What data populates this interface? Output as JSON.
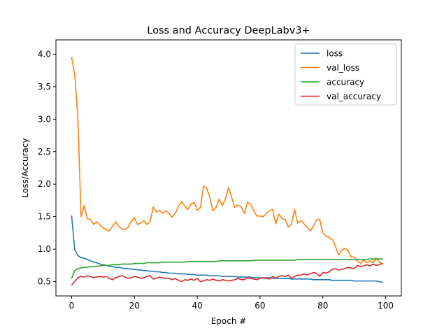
{
  "chart_data": {
    "type": "line",
    "title": "Loss and Accuracy DeepLabv3+",
    "xlabel": "Epoch #",
    "ylabel": "Loss/Accuracy",
    "xlim": [
      -5,
      105
    ],
    "ylim": [
      0.28,
      4.22
    ],
    "xticks": [
      0,
      20,
      40,
      60,
      80,
      100
    ],
    "yticks": [
      0.5,
      1.0,
      1.5,
      2.0,
      2.5,
      3.0,
      3.5,
      4.0
    ],
    "xtick_labels": [
      "0",
      "20",
      "40",
      "60",
      "80",
      "100"
    ],
    "ytick_labels": [
      "0.5",
      "1.0",
      "1.5",
      "2.0",
      "2.5",
      "3.0",
      "3.5",
      "4.0"
    ],
    "grid": false,
    "legend_position": "top-right",
    "x": [
      0,
      1,
      2,
      3,
      4,
      5,
      6,
      7,
      8,
      9,
      10,
      11,
      12,
      13,
      14,
      15,
      16,
      17,
      18,
      19,
      20,
      21,
      22,
      23,
      24,
      25,
      26,
      27,
      28,
      29,
      30,
      31,
      32,
      33,
      34,
      35,
      36,
      37,
      38,
      39,
      40,
      41,
      42,
      43,
      44,
      45,
      46,
      47,
      48,
      49,
      50,
      51,
      52,
      53,
      54,
      55,
      56,
      57,
      58,
      59,
      60,
      61,
      62,
      63,
      64,
      65,
      66,
      67,
      68,
      69,
      70,
      71,
      72,
      73,
      74,
      75,
      76,
      77,
      78,
      79,
      80,
      81,
      82,
      83,
      84,
      85,
      86,
      87,
      88,
      89,
      90,
      91,
      92,
      93,
      94,
      95,
      96,
      97,
      98,
      99
    ],
    "series": [
      {
        "name": "loss",
        "color": "#1f77b4",
        "values": [
          1.51,
          0.99,
          0.9,
          0.87,
          0.86,
          0.84,
          0.82,
          0.8,
          0.79,
          0.77,
          0.76,
          0.75,
          0.74,
          0.73,
          0.72,
          0.72,
          0.71,
          0.7,
          0.7,
          0.69,
          0.69,
          0.68,
          0.68,
          0.67,
          0.67,
          0.66,
          0.66,
          0.65,
          0.65,
          0.64,
          0.64,
          0.63,
          0.63,
          0.63,
          0.62,
          0.62,
          0.62,
          0.61,
          0.61,
          0.61,
          0.6,
          0.6,
          0.6,
          0.6,
          0.59,
          0.59,
          0.59,
          0.59,
          0.58,
          0.58,
          0.58,
          0.58,
          0.58,
          0.57,
          0.57,
          0.57,
          0.57,
          0.57,
          0.56,
          0.56,
          0.56,
          0.56,
          0.56,
          0.56,
          0.55,
          0.55,
          0.55,
          0.55,
          0.55,
          0.55,
          0.54,
          0.54,
          0.54,
          0.54,
          0.54,
          0.54,
          0.54,
          0.53,
          0.53,
          0.53,
          0.53,
          0.53,
          0.53,
          0.52,
          0.52,
          0.52,
          0.52,
          0.52,
          0.52,
          0.52,
          0.51,
          0.51,
          0.51,
          0.51,
          0.51,
          0.51,
          0.51,
          0.51,
          0.5,
          0.49
        ]
      },
      {
        "name": "val_loss",
        "color": "#ff7f0e",
        "values": [
          3.95,
          3.68,
          3.0,
          1.5,
          1.67,
          1.47,
          1.46,
          1.38,
          1.42,
          1.37,
          1.33,
          1.3,
          1.28,
          1.35,
          1.42,
          1.35,
          1.31,
          1.3,
          1.34,
          1.43,
          1.48,
          1.38,
          1.4,
          1.44,
          1.38,
          1.42,
          1.65,
          1.57,
          1.6,
          1.55,
          1.59,
          1.55,
          1.49,
          1.55,
          1.66,
          1.73,
          1.67,
          1.61,
          1.69,
          1.72,
          1.6,
          1.64,
          1.97,
          1.94,
          1.8,
          1.59,
          1.64,
          1.77,
          1.67,
          1.78,
          1.95,
          1.79,
          1.64,
          1.68,
          1.65,
          1.55,
          1.72,
          1.69,
          1.59,
          1.51,
          1.51,
          1.5,
          1.55,
          1.59,
          1.61,
          1.39,
          1.54,
          1.47,
          1.46,
          1.34,
          1.38,
          1.61,
          1.4,
          1.44,
          1.39,
          1.34,
          1.28,
          1.35,
          1.45,
          1.46,
          1.25,
          1.2,
          1.18,
          1.15,
          1.05,
          0.91,
          0.98,
          1.01,
          0.98,
          0.88,
          0.88,
          0.82,
          0.78,
          0.83,
          0.79,
          0.82,
          0.79,
          0.86,
          0.8,
          0.77
        ]
      },
      {
        "name": "accuracy",
        "color": "#2ca02c",
        "values": [
          0.55,
          0.67,
          0.7,
          0.71,
          0.72,
          0.72,
          0.73,
          0.73,
          0.74,
          0.74,
          0.75,
          0.75,
          0.75,
          0.76,
          0.76,
          0.76,
          0.77,
          0.77,
          0.77,
          0.77,
          0.78,
          0.78,
          0.78,
          0.78,
          0.79,
          0.79,
          0.79,
          0.79,
          0.79,
          0.8,
          0.8,
          0.8,
          0.8,
          0.8,
          0.8,
          0.8,
          0.8,
          0.81,
          0.81,
          0.81,
          0.81,
          0.81,
          0.81,
          0.81,
          0.81,
          0.81,
          0.81,
          0.82,
          0.82,
          0.82,
          0.82,
          0.82,
          0.82,
          0.82,
          0.82,
          0.82,
          0.82,
          0.82,
          0.83,
          0.83,
          0.83,
          0.83,
          0.83,
          0.83,
          0.83,
          0.83,
          0.83,
          0.83,
          0.83,
          0.83,
          0.83,
          0.83,
          0.84,
          0.84,
          0.84,
          0.84,
          0.84,
          0.84,
          0.84,
          0.84,
          0.84,
          0.84,
          0.84,
          0.84,
          0.84,
          0.84,
          0.84,
          0.84,
          0.84,
          0.84,
          0.84,
          0.84,
          0.84,
          0.84,
          0.84,
          0.85,
          0.85,
          0.85,
          0.85,
          0.85
        ]
      },
      {
        "name": "val_accuracy",
        "color": "#d62728",
        "values": [
          0.45,
          0.5,
          0.56,
          0.58,
          0.57,
          0.59,
          0.58,
          0.56,
          0.57,
          0.58,
          0.57,
          0.58,
          0.55,
          0.53,
          0.56,
          0.58,
          0.59,
          0.57,
          0.55,
          0.56,
          0.58,
          0.57,
          0.55,
          0.56,
          0.58,
          0.59,
          0.54,
          0.55,
          0.57,
          0.56,
          0.55,
          0.55,
          0.53,
          0.55,
          0.52,
          0.5,
          0.53,
          0.52,
          0.54,
          0.52,
          0.55,
          0.5,
          0.51,
          0.53,
          0.52,
          0.54,
          0.52,
          0.51,
          0.53,
          0.52,
          0.51,
          0.52,
          0.53,
          0.55,
          0.53,
          0.53,
          0.56,
          0.55,
          0.54,
          0.53,
          0.55,
          0.56,
          0.55,
          0.54,
          0.58,
          0.55,
          0.58,
          0.59,
          0.58,
          0.6,
          0.55,
          0.58,
          0.6,
          0.6,
          0.62,
          0.6,
          0.62,
          0.64,
          0.63,
          0.58,
          0.64,
          0.63,
          0.65,
          0.69,
          0.7,
          0.68,
          0.69,
          0.7,
          0.72,
          0.71,
          0.7,
          0.75,
          0.73,
          0.74,
          0.76,
          0.74,
          0.77,
          0.75,
          0.76,
          0.78
        ]
      }
    ]
  }
}
